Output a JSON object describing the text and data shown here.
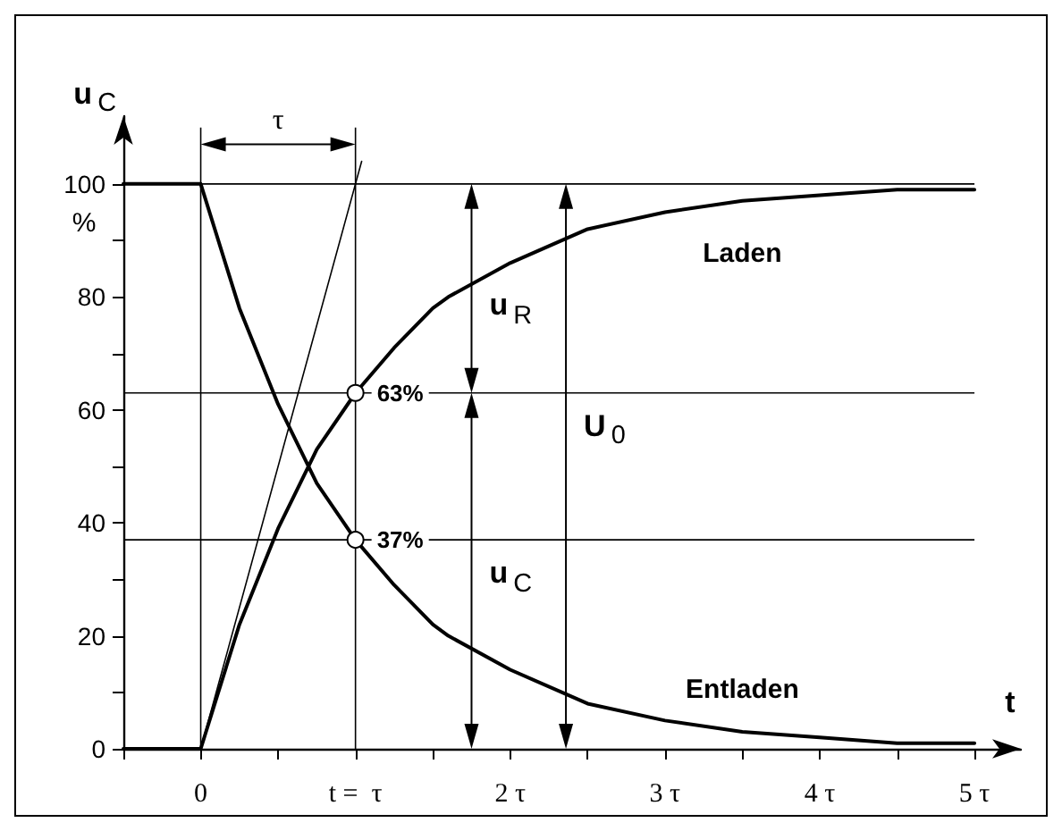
{
  "chart_data": {
    "type": "line",
    "xlabel": "t",
    "ylabel": "u$_{C}$",
    "xlim": [
      -0.5,
      5.3
    ],
    "ylim": [
      0,
      112
    ],
    "xticks": [
      {
        "value": -0.5,
        "label": null
      },
      0,
      {
        "value": 0.5,
        "label": null
      },
      {
        "value": 1,
        "label": "t =  τ"
      },
      {
        "value": 1.5,
        "label": null
      },
      {
        "value": 2,
        "label": "2 τ"
      },
      {
        "value": 2.5,
        "label": null
      },
      {
        "value": 3,
        "label": "3 τ"
      },
      {
        "value": 3.5,
        "label": null
      },
      {
        "value": 4,
        "label": "4 τ"
      },
      {
        "value": 4.5,
        "label": null
      },
      {
        "value": 5,
        "label": "5 τ"
      }
    ],
    "yticks": [
      0,
      {
        "value": 10,
        "label": null
      },
      20,
      {
        "value": 30,
        "label": null
      },
      40,
      {
        "value": 50,
        "label": null
      },
      60,
      {
        "value": 70,
        "label": null
      },
      80,
      {
        "value": 90,
        "label": null
      },
      100
    ],
    "line_style": "solid",
    "series": [
      {
        "name": "Laden",
        "color": "#000000",
        "x": [
          -0.5,
          0,
          0.25,
          0.5,
          0.75,
          1,
          1.25,
          1.5,
          1.6,
          2,
          2.5,
          3,
          3.5,
          4,
          4.5,
          5
        ],
        "values": [
          0,
          0,
          22,
          39,
          53,
          63,
          71,
          78,
          80,
          86,
          92,
          95,
          97,
          98,
          99,
          99
        ]
      },
      {
        "name": "Entladen",
        "color": "#000000",
        "x": [
          -0.5,
          0,
          0.25,
          0.5,
          0.75,
          1,
          1.25,
          1.5,
          1.6,
          2,
          2.5,
          3,
          3.5,
          4,
          4.5,
          5
        ],
        "values": [
          100,
          100,
          78,
          61,
          47,
          37,
          29,
          22,
          20,
          14,
          8,
          5,
          3,
          2,
          1,
          1
        ]
      },
      {
        "color": "#000000",
        "x": [
          0,
          1.04
        ],
        "values": [
          0,
          104
        ]
      },
      {
        "type": "scatter",
        "color": "#000000",
        "x": [
          1,
          1
        ],
        "values": [
          63,
          37
        ],
        "value_labels": [
          "63%",
          "37%"
        ]
      }
    ],
    "ref_lines": [
      {
        "axis": "y",
        "value": 100
      },
      {
        "axis": "y",
        "value": 63
      },
      {
        "axis": "y",
        "value": 37
      },
      {
        "axis": "x",
        "value": 0
      },
      {
        "axis": "x",
        "value": 1
      }
    ],
    "annotations": [
      "%",
      "τ",
      "u$_{R}$",
      "u$_{C}$",
      "U$_{0}$"
    ]
  }
}
